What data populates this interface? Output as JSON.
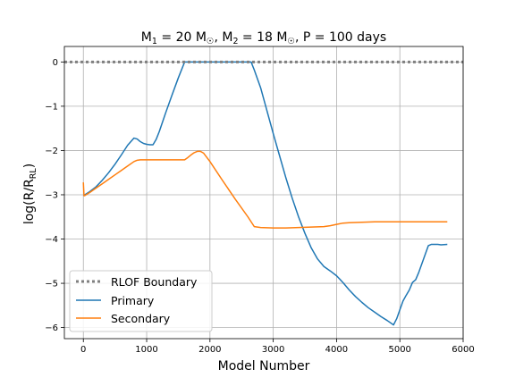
{
  "chart_data": {
    "type": "line",
    "title": "M1 = 20 M☉, M2 = 18 M☉, P = 100 days",
    "title_parts": {
      "m1_label": "M",
      "m1_sub": "1",
      "m1_value": " = 20 M",
      "sun": "☉",
      "m2_label": ", M",
      "m2_sub": "2",
      "m2_value": " = 18 M",
      "tail": ", P = 100 days"
    },
    "xlabel": "Model Number",
    "ylabel": "log(R/R_RL)",
    "ylabel_parts": {
      "main": "log(R/R",
      "sub": "RL",
      "close": ")"
    },
    "xlim": [
      -300,
      6000
    ],
    "ylim": [
      -6.25,
      0.35
    ],
    "xticks": [
      0,
      1000,
      2000,
      3000,
      4000,
      5000,
      6000
    ],
    "yticks": [
      0,
      -1,
      -2,
      -3,
      -4,
      -5,
      -6
    ],
    "ytick_labels": [
      "0",
      "−1",
      "−2",
      "−3",
      "−4",
      "−5",
      "−6"
    ],
    "grid": true,
    "legend_position": "lower left",
    "colors": {
      "primary": "#1f77b4",
      "secondary": "#ff7f0e",
      "boundary": "#808080",
      "grid": "#b0b0b0"
    },
    "series": [
      {
        "name": "RLOF Boundary",
        "style": "dotted",
        "x": [
          -300,
          6000
        ],
        "y": [
          0,
          0
        ]
      },
      {
        "name": "Primary",
        "style": "solid",
        "x": [
          0,
          100,
          200,
          300,
          400,
          500,
          600,
          700,
          800,
          850,
          900,
          950,
          1000,
          1050,
          1100,
          1150,
          1200,
          1300,
          1400,
          1500,
          1600,
          1650,
          2000,
          2500,
          2650,
          2700,
          2800,
          2900,
          3000,
          3100,
          3200,
          3300,
          3400,
          3500,
          3600,
          3700,
          3800,
          3900,
          4000,
          4100,
          4200,
          4300,
          4400,
          4500,
          4600,
          4700,
          4800,
          4900,
          4950,
          5000,
          5050,
          5100,
          5150,
          5200,
          5250,
          5300,
          5400,
          5450,
          5500,
          5600,
          5650,
          5750
        ],
        "y": [
          -3.02,
          -2.93,
          -2.82,
          -2.67,
          -2.5,
          -2.31,
          -2.1,
          -1.88,
          -1.72,
          -1.74,
          -1.8,
          -1.84,
          -1.86,
          -1.87,
          -1.87,
          -1.75,
          -1.57,
          -1.15,
          -0.75,
          -0.36,
          0.0,
          0.0,
          0.0,
          0.0,
          0.0,
          -0.18,
          -0.58,
          -1.1,
          -1.62,
          -2.12,
          -2.62,
          -3.08,
          -3.5,
          -3.87,
          -4.2,
          -4.45,
          -4.62,
          -4.72,
          -4.83,
          -4.98,
          -5.15,
          -5.3,
          -5.43,
          -5.55,
          -5.65,
          -5.75,
          -5.84,
          -5.94,
          -5.8,
          -5.6,
          -5.4,
          -5.27,
          -5.15,
          -4.98,
          -4.92,
          -4.75,
          -4.35,
          -4.15,
          -4.12,
          -4.12,
          -4.13,
          -4.12
        ]
      },
      {
        "name": "Secondary",
        "style": "solid",
        "x": [
          0,
          10,
          20,
          100,
          200,
          300,
          400,
          500,
          600,
          700,
          800,
          850,
          900,
          1000,
          1200,
          1400,
          1600,
          1650,
          1700,
          1750,
          1800,
          1850,
          1900,
          2000,
          2200,
          2400,
          2600,
          2700,
          2800,
          3000,
          3200,
          3400,
          3600,
          3800,
          3900,
          4000,
          4100,
          4200,
          4400,
          4600,
          4800,
          5000,
          5200,
          5400,
          5750
        ],
        "y": [
          -2.72,
          -3.02,
          -3.02,
          -2.95,
          -2.85,
          -2.75,
          -2.65,
          -2.55,
          -2.45,
          -2.35,
          -2.25,
          -2.22,
          -2.21,
          -2.21,
          -2.21,
          -2.21,
          -2.21,
          -2.16,
          -2.1,
          -2.05,
          -2.02,
          -2.02,
          -2.06,
          -2.25,
          -2.68,
          -3.1,
          -3.5,
          -3.72,
          -3.74,
          -3.75,
          -3.75,
          -3.74,
          -3.73,
          -3.72,
          -3.7,
          -3.67,
          -3.64,
          -3.63,
          -3.62,
          -3.61,
          -3.61,
          -3.61,
          -3.61,
          -3.61,
          -3.61
        ]
      }
    ]
  }
}
